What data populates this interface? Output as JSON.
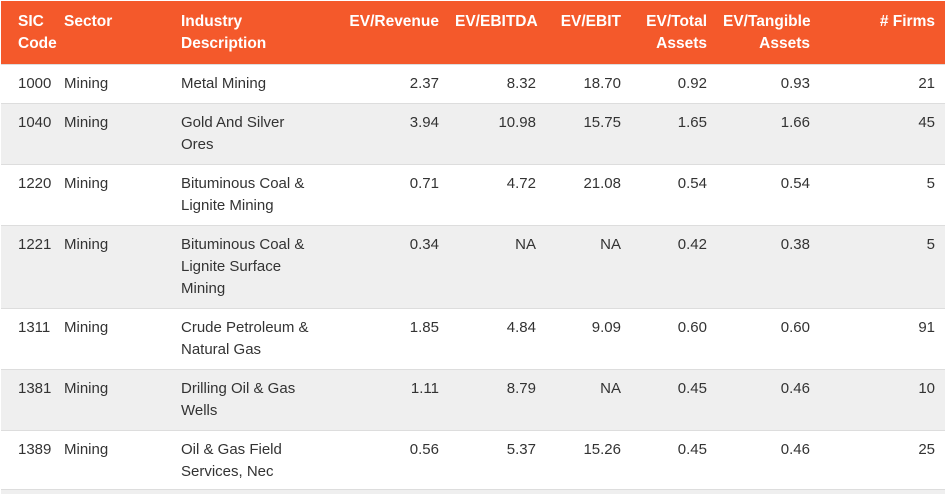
{
  "headers": {
    "sic_code": "SIC Code",
    "sector": "Sector",
    "industry": "Industry Description",
    "ev_revenue": "EV/Revenue",
    "ev_ebitda": "EV/EBITDA",
    "ev_ebit": "EV/EBIT",
    "ev_total_assets": "EV/Total Assets",
    "ev_tangible_assets": "EV/Tangible Assets",
    "firms": "# Firms"
  },
  "rows": [
    {
      "sic": "1000",
      "sector": "Mining",
      "industry": "Metal Mining",
      "ev_revenue": "2.37",
      "ev_ebitda": "8.32",
      "ev_ebit": "18.70",
      "ev_total_assets": "0.92",
      "ev_tangible_assets": "0.93",
      "firms": "21"
    },
    {
      "sic": "1040",
      "sector": "Mining",
      "industry": "Gold And Silver Ores",
      "ev_revenue": "3.94",
      "ev_ebitda": "10.98",
      "ev_ebit": "15.75",
      "ev_total_assets": "1.65",
      "ev_tangible_assets": "1.66",
      "firms": "45"
    },
    {
      "sic": "1220",
      "sector": "Mining",
      "industry": "Bituminous Coal & Lignite Mining",
      "ev_revenue": "0.71",
      "ev_ebitda": "4.72",
      "ev_ebit": "21.08",
      "ev_total_assets": "0.54",
      "ev_tangible_assets": "0.54",
      "firms": "5"
    },
    {
      "sic": "1221",
      "sector": "Mining",
      "industry": "Bituminous Coal & Lignite Surface Mining",
      "ev_revenue": "0.34",
      "ev_ebitda": "NA",
      "ev_ebit": "NA",
      "ev_total_assets": "0.42",
      "ev_tangible_assets": "0.38",
      "firms": "5"
    },
    {
      "sic": "1311",
      "sector": "Mining",
      "industry": "Crude Petroleum & Natural Gas",
      "ev_revenue": "1.85",
      "ev_ebitda": "4.84",
      "ev_ebit": "9.09",
      "ev_total_assets": "0.60",
      "ev_tangible_assets": "0.60",
      "firms": "91"
    },
    {
      "sic": "1381",
      "sector": "Mining",
      "industry": "Drilling Oil & Gas Wells",
      "ev_revenue": "1.11",
      "ev_ebitda": "8.79",
      "ev_ebit": "NA",
      "ev_total_assets": "0.45",
      "ev_tangible_assets": "0.46",
      "firms": "10"
    },
    {
      "sic": "1389",
      "sector": "Mining",
      "industry": "Oil & Gas Field Services, Nec",
      "ev_revenue": "0.56",
      "ev_ebitda": "5.37",
      "ev_ebit": "15.26",
      "ev_total_assets": "0.45",
      "ev_tangible_assets": "0.46",
      "firms": "25"
    }
  ],
  "colors": {
    "header_bg": "#f4592b",
    "header_text": "#ffffff",
    "stripe_bg": "#efefef"
  }
}
